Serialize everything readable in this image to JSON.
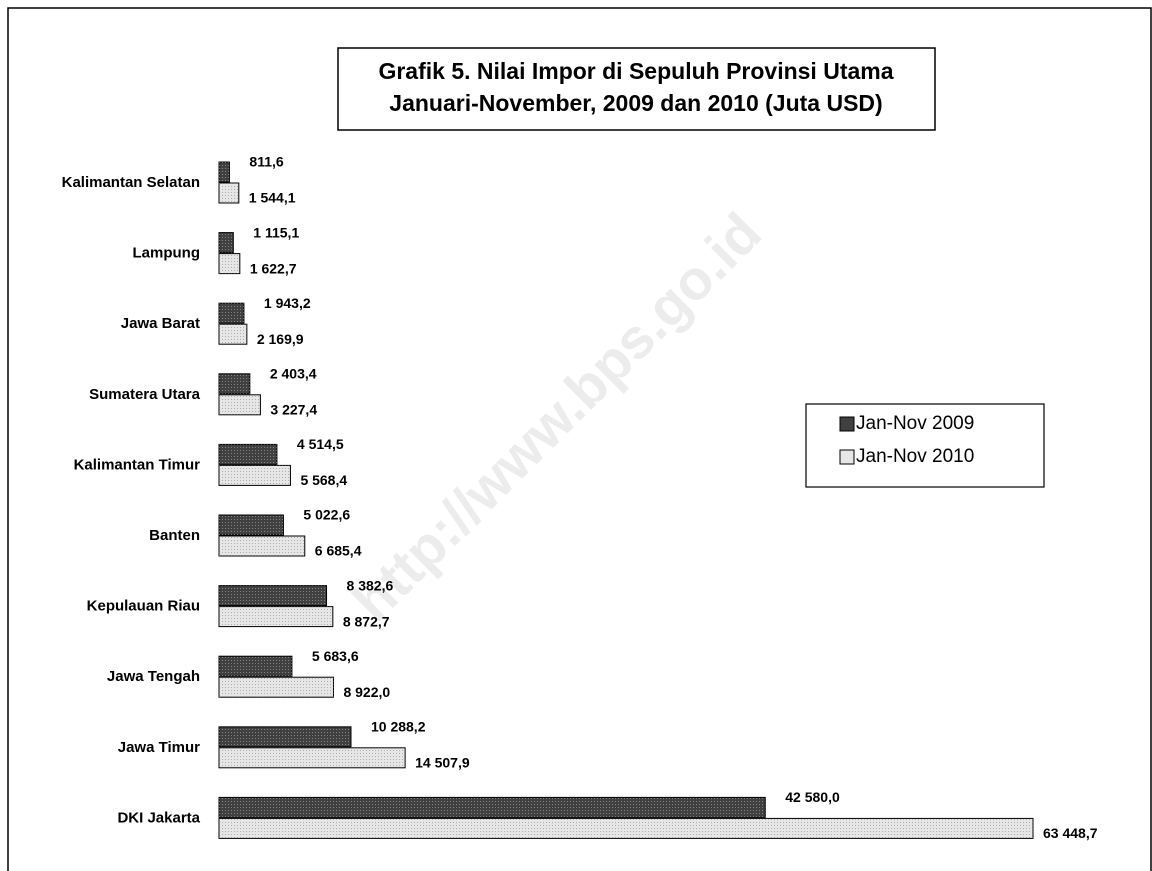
{
  "chart_data": {
    "type": "bar",
    "orientation": "horizontal",
    "title": [
      "Grafik 5. Nilai Impor di Sepuluh Provinsi Utama",
      "Januari-November, 2009 dan 2010 (Juta USD)"
    ],
    "watermark": "http://www.bps.go.id",
    "categories": [
      "Kalimantan Selatan",
      "Lampung",
      "Jawa Barat",
      "Sumatera Utara",
      "Kalimantan Timur",
      "Banten",
      "Kepulauan Riau",
      "Jawa Tengah",
      "Jawa Timur",
      "DKI Jakarta"
    ],
    "series": [
      {
        "name": "Jan-Nov 2009",
        "color": "#404040",
        "values": [
          811.6,
          1115.1,
          1943.2,
          2403.4,
          4514.5,
          5022.6,
          8382.6,
          5683.6,
          10288.2,
          42580.0
        ],
        "value_labels": [
          "811,6",
          "1 115,1",
          "1 943,2",
          "2 403,4",
          "4 514,5",
          "5 022,6",
          "8 382,6",
          "5 683,6",
          "10 288,2",
          "42 580,0"
        ]
      },
      {
        "name": "Jan-Nov 2010",
        "color": "#e6e6e6",
        "values": [
          1544.1,
          1622.7,
          2169.9,
          3227.4,
          5568.4,
          6685.4,
          8872.7,
          8922.0,
          14507.9,
          63448.7
        ],
        "value_labels": [
          "1 544,1",
          "1 622,7",
          "2 169,9",
          "3 227,4",
          "5 568,4",
          "6 685,4",
          "8 872,7",
          "8 922,0",
          "14 507,9",
          "63 448,7"
        ]
      }
    ],
    "legend": "right"
  }
}
